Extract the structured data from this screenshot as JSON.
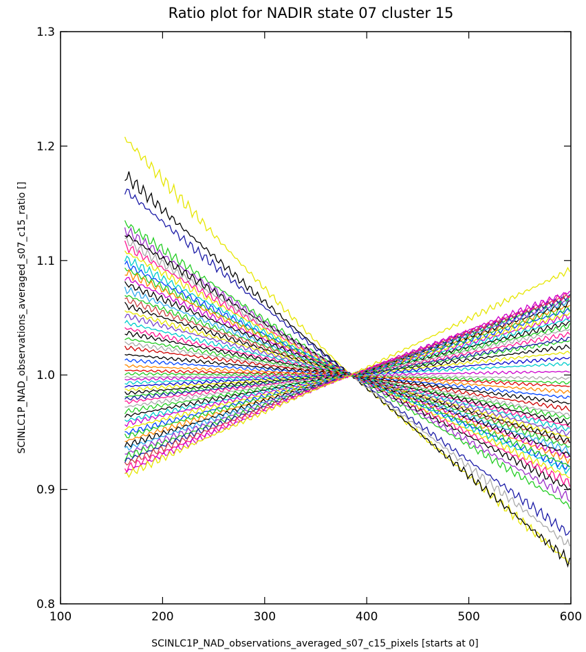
{
  "chart_data": {
    "type": "line",
    "title": "Ratio plot for NADIR state 07 cluster 15",
    "xlabel": "SCINLC1P_NAD_observations_averaged_s07_c15_pixels [starts at 0]",
    "ylabel": "SCINLC1P_NAD_observations_averaged_s07_c15_ratio []",
    "xlim": [
      100,
      600
    ],
    "ylim": [
      0.8,
      1.3
    ],
    "x_ticks": [
      100,
      200,
      300,
      400,
      500,
      600
    ],
    "x_tick_labels": [
      "100",
      "200",
      "300",
      "400",
      "500",
      "600"
    ],
    "y_ticks": [
      0.8,
      0.9,
      1.0,
      1.1,
      1.2,
      1.3
    ],
    "y_tick_labels": [
      "0.8",
      "0.9",
      "1.0",
      "1.1",
      "1.2",
      "1.3"
    ],
    "grid": false,
    "legend": "none",
    "x_start": 163,
    "x_end": 600,
    "crossing_x": 385,
    "series": [
      {
        "values": [
          1.207,
          0.835
        ],
        "color": "#e6e600"
      },
      {
        "values": [
          1.175,
          0.836
        ],
        "color": "#000000"
      },
      {
        "values": [
          1.162,
          0.86
        ],
        "color": "#1a1aa6"
      },
      {
        "values": [
          1.133,
          0.885
        ],
        "color": "#22cc22"
      },
      {
        "values": [
          1.127,
          0.892
        ],
        "color": "#9b30c8"
      },
      {
        "values": [
          1.123,
          0.9
        ],
        "color": "#000000"
      },
      {
        "values": [
          1.118,
          0.85
        ],
        "color": "#aaaaaa"
      },
      {
        "values": [
          1.113,
          0.905
        ],
        "color": "#ff1493"
      },
      {
        "values": [
          1.108,
          0.91
        ],
        "color": "#e6e600"
      },
      {
        "values": [
          1.102,
          0.915
        ],
        "color": "#00cccc"
      },
      {
        "values": [
          1.097,
          0.918
        ],
        "color": "#0044ff"
      },
      {
        "values": [
          1.093,
          0.92
        ],
        "color": "#22cc22"
      },
      {
        "values": [
          1.09,
          0.925
        ],
        "color": "#ff8800"
      },
      {
        "values": [
          1.085,
          0.928
        ],
        "color": "#cc00cc"
      },
      {
        "values": [
          1.08,
          0.93
        ],
        "color": "#000000"
      },
      {
        "values": [
          1.075,
          0.933
        ],
        "color": "#33aaee"
      },
      {
        "values": [
          1.07,
          0.937
        ],
        "color": "#22cc22"
      },
      {
        "values": [
          1.066,
          0.94
        ],
        "color": "#cc4444"
      },
      {
        "values": [
          1.061,
          0.942
        ],
        "color": "#000000"
      },
      {
        "values": [
          1.056,
          0.945
        ],
        "color": "#e6e600"
      },
      {
        "values": [
          1.052,
          0.948
        ],
        "color": "#7744cc"
      },
      {
        "values": [
          1.046,
          0.952
        ],
        "color": "#00cccc"
      },
      {
        "values": [
          1.041,
          0.955
        ],
        "color": "#ff1493"
      },
      {
        "values": [
          1.037,
          0.958
        ],
        "color": "#000000"
      },
      {
        "values": [
          1.032,
          0.962
        ],
        "color": "#22cc22"
      },
      {
        "values": [
          1.028,
          0.965
        ],
        "color": "#aaaaaa"
      },
      {
        "values": [
          1.024,
          0.97
        ],
        "color": "#cc0000"
      },
      {
        "values": [
          1.018,
          0.975
        ],
        "color": "#000000"
      },
      {
        "values": [
          1.013,
          0.98
        ],
        "color": "#0044ff"
      },
      {
        "values": [
          1.008,
          0.985
        ],
        "color": "#ff8800"
      },
      {
        "values": [
          1.004,
          0.99
        ],
        "color": "#dd0000"
      },
      {
        "values": [
          1.001,
          0.993
        ],
        "color": "#22cc22"
      },
      {
        "values": [
          0.998,
          0.997
        ],
        "color": "#aaaaaa"
      },
      {
        "values": [
          0.996,
          1.003
        ],
        "color": "#cc00cc"
      },
      {
        "values": [
          0.993,
          1.01
        ],
        "color": "#00cccc"
      },
      {
        "values": [
          0.99,
          1.015
        ],
        "color": "#0000cc"
      },
      {
        "values": [
          0.987,
          1.02
        ],
        "color": "#e6e600"
      },
      {
        "values": [
          0.984,
          1.025
        ],
        "color": "#000000"
      },
      {
        "values": [
          0.981,
          1.03
        ],
        "color": "#22cc22"
      },
      {
        "values": [
          0.979,
          1.032
        ],
        "color": "#1a1aa6"
      },
      {
        "values": [
          0.976,
          1.036
        ],
        "color": "#ff1493"
      },
      {
        "values": [
          0.972,
          1.04
        ],
        "color": "#aaaaaa"
      },
      {
        "values": [
          0.968,
          1.043
        ],
        "color": "#22cc22"
      },
      {
        "values": [
          0.964,
          1.046
        ],
        "color": "#000000"
      },
      {
        "values": [
          0.96,
          1.049
        ],
        "color": "#00cccc"
      },
      {
        "values": [
          0.957,
          1.052
        ],
        "color": "#cc00cc"
      },
      {
        "values": [
          0.953,
          1.054
        ],
        "color": "#e6e600"
      },
      {
        "values": [
          0.949,
          1.057
        ],
        "color": "#0044ff"
      },
      {
        "values": [
          0.946,
          1.059
        ],
        "color": "#22cc22"
      },
      {
        "values": [
          0.942,
          1.061
        ],
        "color": "#ff8800"
      },
      {
        "values": [
          0.938,
          1.063
        ],
        "color": "#000000"
      },
      {
        "values": [
          0.935,
          1.065
        ],
        "color": "#33aaee"
      },
      {
        "values": [
          0.931,
          1.066
        ],
        "color": "#9b30c8"
      },
      {
        "values": [
          0.928,
          1.068
        ],
        "color": "#22cc22"
      },
      {
        "values": [
          0.925,
          1.069
        ],
        "color": "#1a1aa6"
      },
      {
        "values": [
          0.922,
          1.07
        ],
        "color": "#cc4444"
      },
      {
        "values": [
          0.918,
          1.071
        ],
        "color": "#ff1493"
      },
      {
        "values": [
          0.915,
          1.073
        ],
        "color": "#cc00cc"
      },
      {
        "values": [
          0.912,
          1.092
        ],
        "color": "#e6e600"
      }
    ]
  }
}
